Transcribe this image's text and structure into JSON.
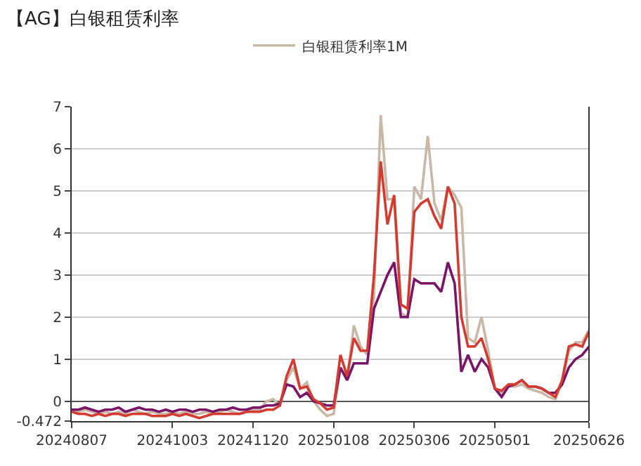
{
  "chart_data": {
    "type": "line",
    "title": "【AG】白银租赁利率",
    "categories": [
      "20240807",
      null,
      null,
      null,
      null,
      null,
      null,
      null,
      null,
      null,
      null,
      null,
      null,
      null,
      null,
      "20241003",
      null,
      null,
      null,
      null,
      null,
      null,
      null,
      null,
      null,
      null,
      null,
      "20241120",
      null,
      null,
      null,
      null,
      null,
      null,
      null,
      null,
      null,
      null,
      null,
      "20250108",
      null,
      null,
      null,
      null,
      null,
      null,
      null,
      null,
      null,
      null,
      null,
      "20250306",
      null,
      null,
      null,
      null,
      null,
      null,
      null,
      null,
      null,
      null,
      null,
      "20250501",
      null,
      null,
      null,
      null,
      null,
      null,
      null,
      null,
      null,
      null,
      null,
      null,
      null,
      "20250626"
    ],
    "series": [
      {
        "name": "白银租赁利率1M",
        "color": "#c8b8a5",
        "values": [
          -0.2,
          -0.25,
          -0.2,
          -0.25,
          -0.3,
          -0.25,
          -0.3,
          -0.25,
          -0.3,
          -0.2,
          -0.25,
          -0.3,
          -0.25,
          -0.3,
          -0.3,
          -0.25,
          -0.3,
          -0.25,
          -0.3,
          -0.3,
          -0.25,
          -0.3,
          -0.25,
          -0.2,
          -0.25,
          -0.3,
          -0.25,
          -0.2,
          -0.2,
          0.0,
          0.05,
          -0.1,
          0.5,
          0.8,
          0.3,
          0.45,
          0.0,
          -0.2,
          -0.35,
          -0.3,
          0.8,
          0.5,
          1.8,
          1.3,
          1.1,
          2.5,
          6.8,
          4.8,
          4.8,
          2.1,
          2.0,
          5.1,
          4.8,
          6.3,
          4.7,
          4.3,
          5.1,
          4.9,
          4.6,
          1.5,
          1.4,
          2.0,
          1.2,
          0.3,
          0.2,
          0.35,
          0.35,
          0.4,
          0.3,
          0.25,
          0.2,
          0.1,
          0.05,
          0.45,
          1.2,
          1.4,
          1.4,
          1.7
        ]
      },
      {
        "color": "#7a1468",
        "values": [
          -0.2,
          -0.2,
          -0.15,
          -0.2,
          -0.25,
          -0.2,
          -0.2,
          -0.15,
          -0.25,
          -0.2,
          -0.15,
          -0.2,
          -0.2,
          -0.25,
          -0.2,
          -0.25,
          -0.2,
          -0.2,
          -0.25,
          -0.2,
          -0.2,
          -0.25,
          -0.2,
          -0.2,
          -0.15,
          -0.2,
          -0.2,
          -0.15,
          -0.15,
          -0.1,
          -0.1,
          -0.05,
          0.4,
          0.35,
          0.1,
          0.2,
          0.0,
          -0.05,
          -0.1,
          -0.1,
          0.8,
          0.5,
          0.9,
          0.9,
          0.9,
          2.2,
          2.6,
          3.0,
          3.3,
          2.0,
          2.0,
          2.9,
          2.8,
          2.8,
          2.8,
          2.6,
          3.3,
          2.8,
          0.7,
          1.1,
          0.7,
          1.0,
          0.8,
          0.3,
          0.1,
          0.35,
          0.4,
          0.5,
          0.35,
          0.35,
          0.3,
          0.2,
          0.2,
          0.4,
          0.8,
          1.0,
          1.1,
          1.3
        ]
      },
      {
        "color": "#d33b31",
        "values": [
          -0.25,
          -0.3,
          -0.3,
          -0.35,
          -0.3,
          -0.35,
          -0.3,
          -0.3,
          -0.35,
          -0.3,
          -0.3,
          -0.3,
          -0.35,
          -0.35,
          -0.35,
          -0.3,
          -0.35,
          -0.3,
          -0.35,
          -0.4,
          -0.35,
          -0.3,
          -0.3,
          -0.3,
          -0.3,
          -0.3,
          -0.25,
          -0.25,
          -0.25,
          -0.2,
          -0.2,
          -0.1,
          0.6,
          1.0,
          0.3,
          0.35,
          0.05,
          -0.05,
          -0.2,
          -0.15,
          1.1,
          0.6,
          1.5,
          1.2,
          1.2,
          3.0,
          5.7,
          4.2,
          4.9,
          2.3,
          2.2,
          4.5,
          4.7,
          4.8,
          4.4,
          4.1,
          5.1,
          4.7,
          2.0,
          1.3,
          1.3,
          1.5,
          1.0,
          0.3,
          0.25,
          0.4,
          0.4,
          0.5,
          0.35,
          0.35,
          0.3,
          0.2,
          0.1,
          0.5,
          1.3,
          1.35,
          1.3,
          1.65
        ]
      }
    ],
    "ylim": [
      -0.472,
      7
    ],
    "yticks": [
      -0.472,
      0,
      1,
      2,
      3,
      4,
      5,
      6,
      7
    ],
    "grid": "y",
    "legend": "top",
    "marker": "none",
    "line_style": "solid"
  }
}
